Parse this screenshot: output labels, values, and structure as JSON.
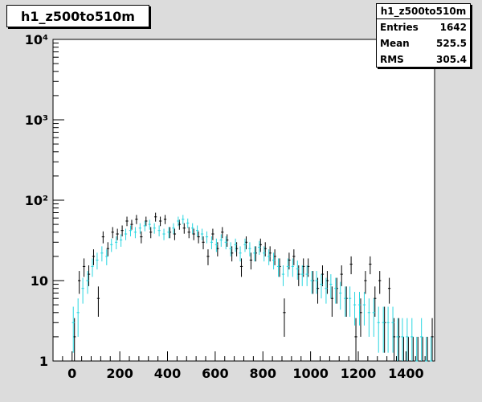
{
  "title": "h1_z500to510m",
  "stats": {
    "name": "h1_z500to510m",
    "rows": [
      {
        "label": "Entries",
        "value": "1642"
      },
      {
        "label": "Mean",
        "value": "525.5"
      },
      {
        "label": "RMS",
        "value": "305.4"
      }
    ]
  },
  "colors": {
    "background": "#dcdcdc",
    "frame": "#ffffff",
    "series_black": "#000000",
    "series_cyan": "#29d6e0"
  },
  "chart_data": {
    "type": "scatter",
    "title": "h1_z500to510m",
    "xlabel": "",
    "ylabel": "",
    "xlim": [
      -80,
      1520
    ],
    "ylim": [
      1,
      10000
    ],
    "yscale": "log",
    "grid": false,
    "x_ticks": [
      0,
      200,
      400,
      600,
      800,
      1000,
      1200,
      1400
    ],
    "y_ticks": [
      {
        "value": 1,
        "label": "1"
      },
      {
        "value": 10,
        "label": "10"
      },
      {
        "value": 100,
        "label": "10²"
      },
      {
        "value": 1000,
        "label": "10³"
      },
      {
        "value": 10000,
        "label": "10⁴"
      }
    ],
    "bin_width": 20,
    "series": [
      {
        "color": "#000000",
        "x": [
          10,
          30,
          50,
          70,
          90,
          110,
          130,
          150,
          170,
          190,
          210,
          230,
          250,
          270,
          290,
          310,
          330,
          350,
          370,
          390,
          410,
          430,
          450,
          470,
          490,
          510,
          530,
          550,
          570,
          590,
          610,
          630,
          650,
          670,
          690,
          710,
          730,
          750,
          770,
          790,
          810,
          830,
          850,
          870,
          890,
          910,
          930,
          950,
          970,
          990,
          1010,
          1030,
          1050,
          1070,
          1090,
          1110,
          1130,
          1150,
          1170,
          1190,
          1210,
          1230,
          1250,
          1270,
          1290,
          1310,
          1330,
          1350,
          1370,
          1390,
          1410,
          1430,
          1450,
          1470,
          1490,
          1510
        ],
        "y": [
          2,
          10,
          15,
          12,
          20,
          6,
          35,
          25,
          40,
          38,
          42,
          55,
          50,
          58,
          35,
          55,
          40,
          62,
          55,
          58,
          40,
          38,
          50,
          45,
          40,
          38,
          35,
          30,
          20,
          38,
          25,
          40,
          32,
          22,
          25,
          15,
          30,
          18,
          22,
          28,
          25,
          22,
          20,
          15,
          4,
          18,
          20,
          12,
          15,
          15,
          10,
          8,
          12,
          10,
          6,
          8,
          12,
          6,
          16,
          2,
          4,
          10,
          16,
          6,
          10,
          3,
          8,
          2,
          2,
          1,
          1,
          1,
          1,
          1,
          1,
          2
        ]
      },
      {
        "color": "#29d6e0",
        "x": [
          5,
          25,
          45,
          65,
          85,
          105,
          125,
          145,
          165,
          185,
          205,
          225,
          245,
          265,
          285,
          305,
          325,
          345,
          365,
          385,
          405,
          425,
          445,
          465,
          485,
          505,
          525,
          545,
          565,
          585,
          605,
          625,
          645,
          665,
          685,
          705,
          725,
          745,
          765,
          785,
          805,
          825,
          845,
          865,
          885,
          905,
          925,
          945,
          965,
          985,
          1005,
          1025,
          1045,
          1065,
          1085,
          1105,
          1125,
          1145,
          1165,
          1185,
          1205,
          1225,
          1245,
          1265,
          1285,
          1305,
          1325,
          1345,
          1365,
          1385,
          1405,
          1425,
          1445,
          1465,
          1485,
          1505
        ],
        "y": [
          3,
          4,
          8,
          10,
          15,
          18,
          22,
          20,
          28,
          30,
          32,
          38,
          42,
          40,
          45,
          48,
          50,
          45,
          42,
          38,
          40,
          45,
          55,
          58,
          52,
          45,
          42,
          38,
          35,
          30,
          28,
          32,
          30,
          25,
          28,
          22,
          28,
          25,
          22,
          26,
          22,
          20,
          18,
          15,
          12,
          15,
          15,
          14,
          12,
          12,
          10,
          10,
          9,
          8,
          9,
          8,
          7,
          6,
          6,
          5,
          5,
          5,
          4,
          4,
          3,
          3,
          3,
          3,
          2,
          2,
          2,
          2,
          1,
          2,
          1,
          1
        ]
      }
    ]
  }
}
